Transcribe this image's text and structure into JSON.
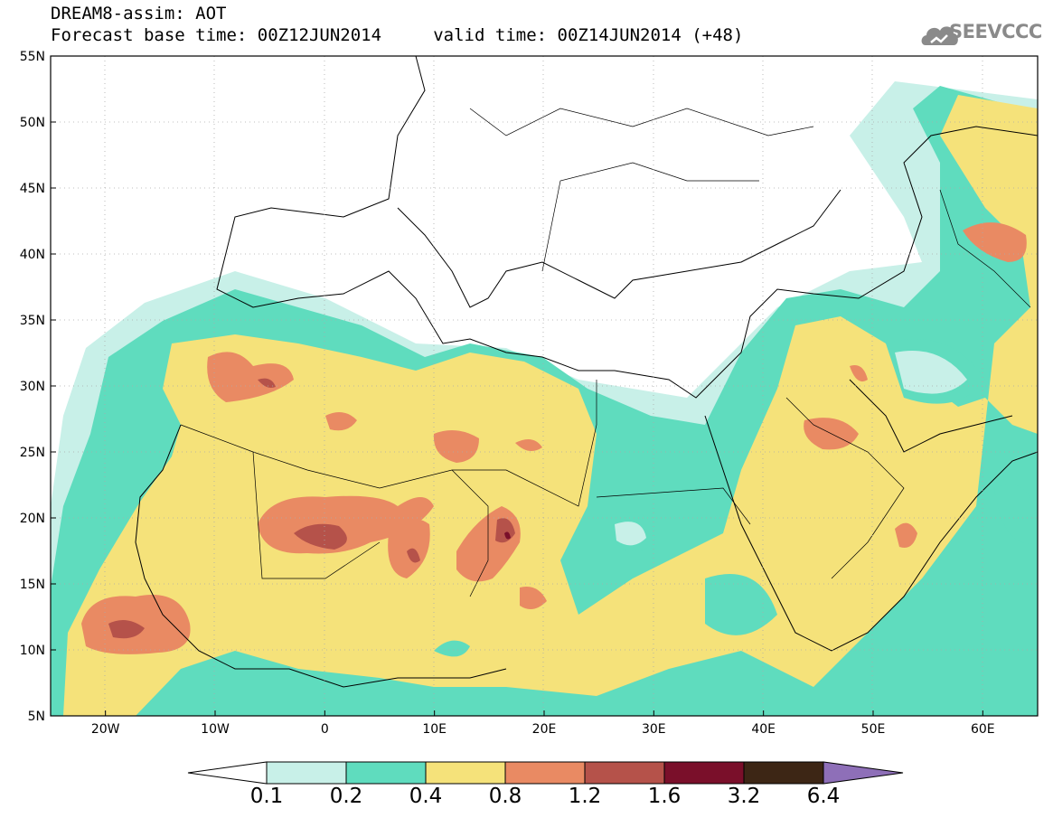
{
  "header": {
    "line1": "DREAM8-assim: AOT",
    "line2": "Forecast base time: 00Z12JUN2014     valid time: 00Z14JUN2014 (+48)",
    "logo_text": "SEEVCCC",
    "logo_icon": "cloud-icon"
  },
  "map": {
    "lat_labels": [
      "55N",
      "50N",
      "45N",
      "40N",
      "35N",
      "30N",
      "25N",
      "20N",
      "15N",
      "10N",
      "5N"
    ],
    "lon_labels": [
      "20W",
      "10W",
      "0",
      "10E",
      "20E",
      "30E",
      "40E",
      "50E",
      "60E"
    ],
    "lat_range": [
      5,
      55
    ],
    "lon_range": [
      -25,
      65
    ],
    "gridlines": "dotted",
    "colors": {
      "land_outline": "#000000",
      "background": "#ffffff"
    }
  },
  "colorbar": {
    "levels": [
      "0.1",
      "0.2",
      "0.4",
      "0.8",
      "1.2",
      "1.6",
      "3.2",
      "6.4"
    ],
    "colors": [
      "#c8f0e8",
      "#5fdcbe",
      "#f5e27a",
      "#e98a63",
      "#b5524a",
      "#7a0f2a",
      "#3d2615"
    ],
    "under_color": "#ffffff",
    "over_color": "#8e6fb8"
  }
}
